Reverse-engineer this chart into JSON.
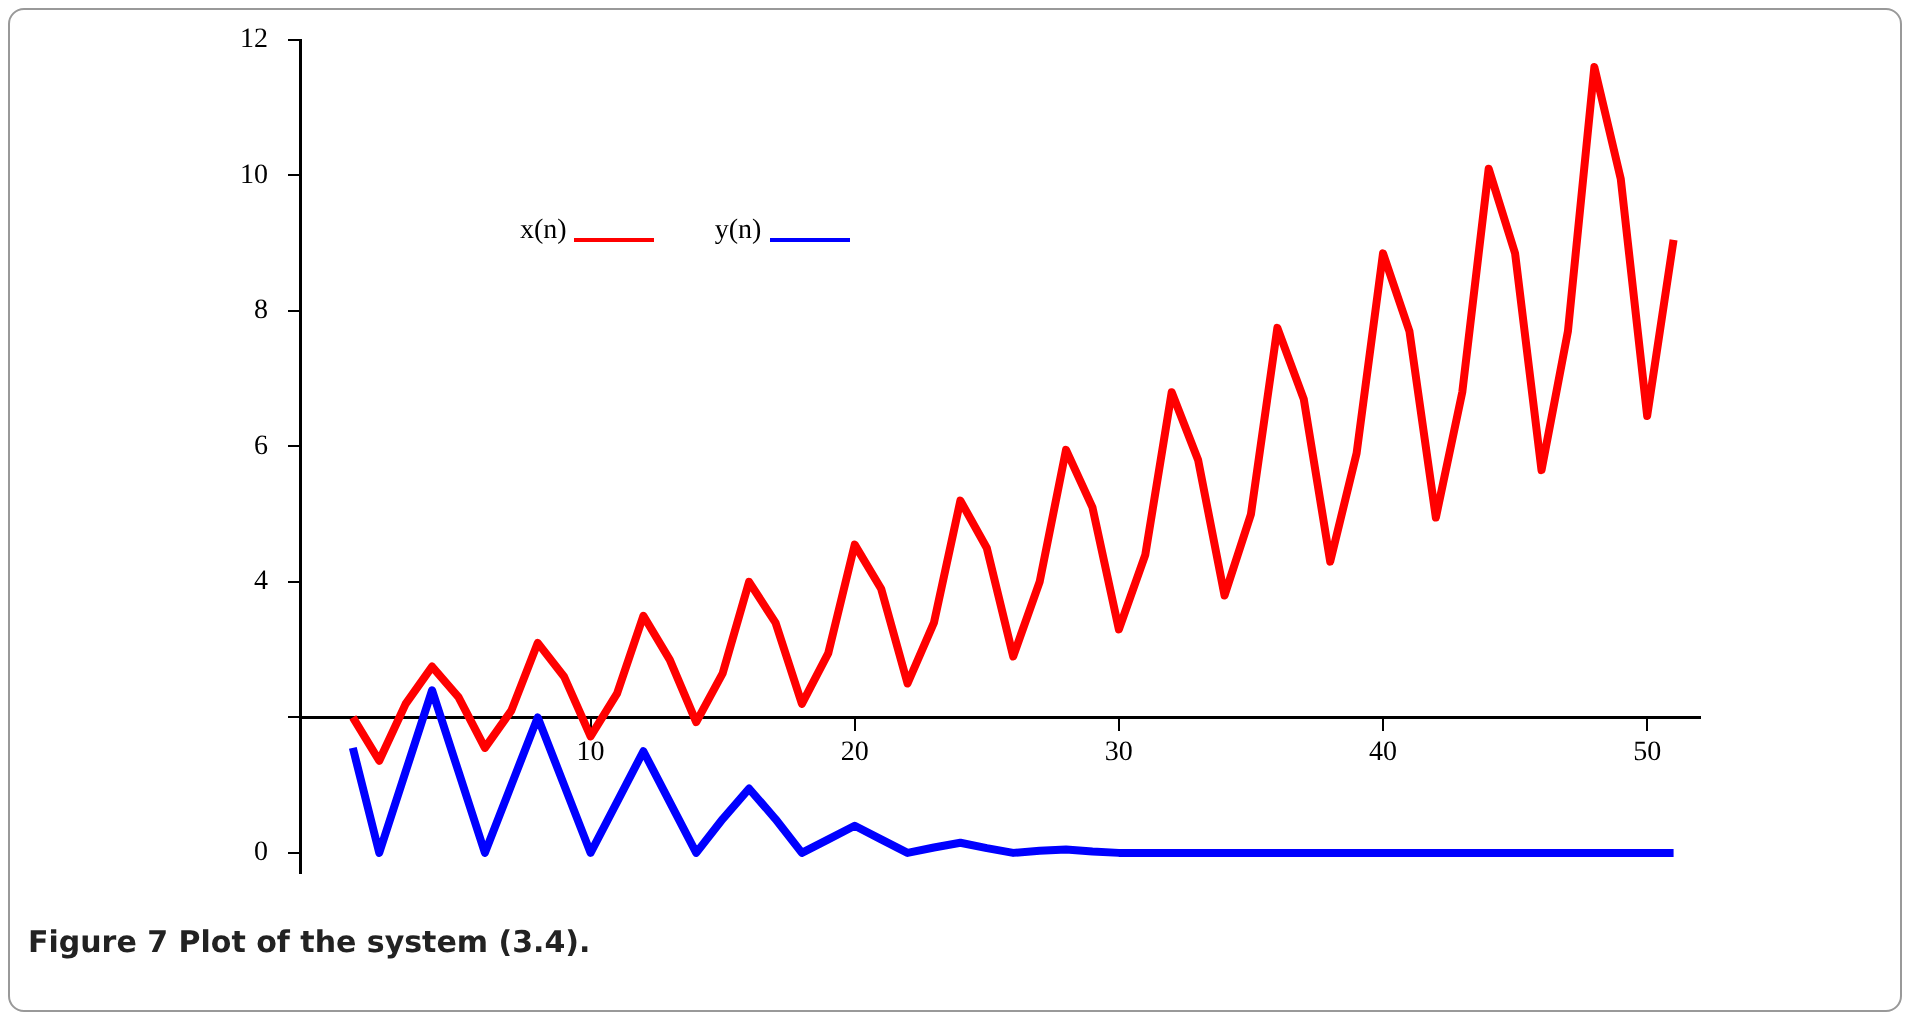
{
  "chart_data": {
    "type": "line",
    "title": "Figure 7  Plot of the system (3.4).",
    "x": [
      1,
      2,
      3,
      4,
      5,
      6,
      7,
      8,
      9,
      10,
      11,
      12,
      13,
      14,
      15,
      16,
      17,
      18,
      19,
      20,
      21,
      22,
      23,
      24,
      25,
      26,
      27,
      28,
      29,
      30,
      31,
      32,
      33,
      34,
      35,
      36,
      37,
      38,
      39,
      40,
      41,
      42,
      43,
      44,
      45,
      46,
      47,
      48,
      49,
      50,
      51
    ],
    "series": [
      {
        "name": "x(n)",
        "color": "#ff0000",
        "values": [
          2.0,
          1.36,
          2.2,
          2.75,
          2.3,
          1.55,
          2.1,
          3.1,
          2.6,
          1.72,
          2.35,
          3.5,
          2.85,
          1.93,
          2.65,
          4.0,
          3.4,
          2.2,
          2.95,
          4.55,
          3.9,
          2.5,
          3.4,
          5.2,
          4.5,
          2.9,
          4.0,
          5.95,
          5.1,
          3.3,
          4.4,
          6.8,
          5.8,
          3.8,
          5.0,
          7.75,
          6.7,
          4.3,
          5.9,
          8.85,
          7.7,
          4.95,
          6.8,
          10.1,
          8.85,
          5.65,
          7.7,
          11.6,
          9.95,
          6.45,
          9.05
        ]
      },
      {
        "name": "y(n)",
        "color": "#0000ff",
        "values": [
          1.55,
          0,
          1.2,
          2.4,
          1.2,
          0,
          1.0,
          2.0,
          1.0,
          0,
          0.75,
          1.5,
          0.75,
          0,
          0.5,
          0.95,
          0.5,
          0,
          0.2,
          0.4,
          0.2,
          0,
          0.08,
          0.15,
          0.07,
          0,
          0.03,
          0.05,
          0.02,
          0,
          0,
          0,
          0,
          0,
          0,
          0,
          0,
          0,
          0,
          0,
          0,
          0,
          0,
          0,
          0,
          0,
          0,
          0,
          0,
          0,
          0
        ]
      }
    ],
    "xlim": [
      -1,
      52
    ],
    "xticks": [
      10,
      20,
      30,
      40,
      50
    ],
    "ylim": [
      -0.3,
      12
    ],
    "yticks": [
      0,
      {
        "value": 2,
        "label": null
      },
      4,
      6,
      8,
      10,
      12
    ],
    "grid": false,
    "legend": "top left",
    "marker": "none",
    "line_style": "solid"
  }
}
